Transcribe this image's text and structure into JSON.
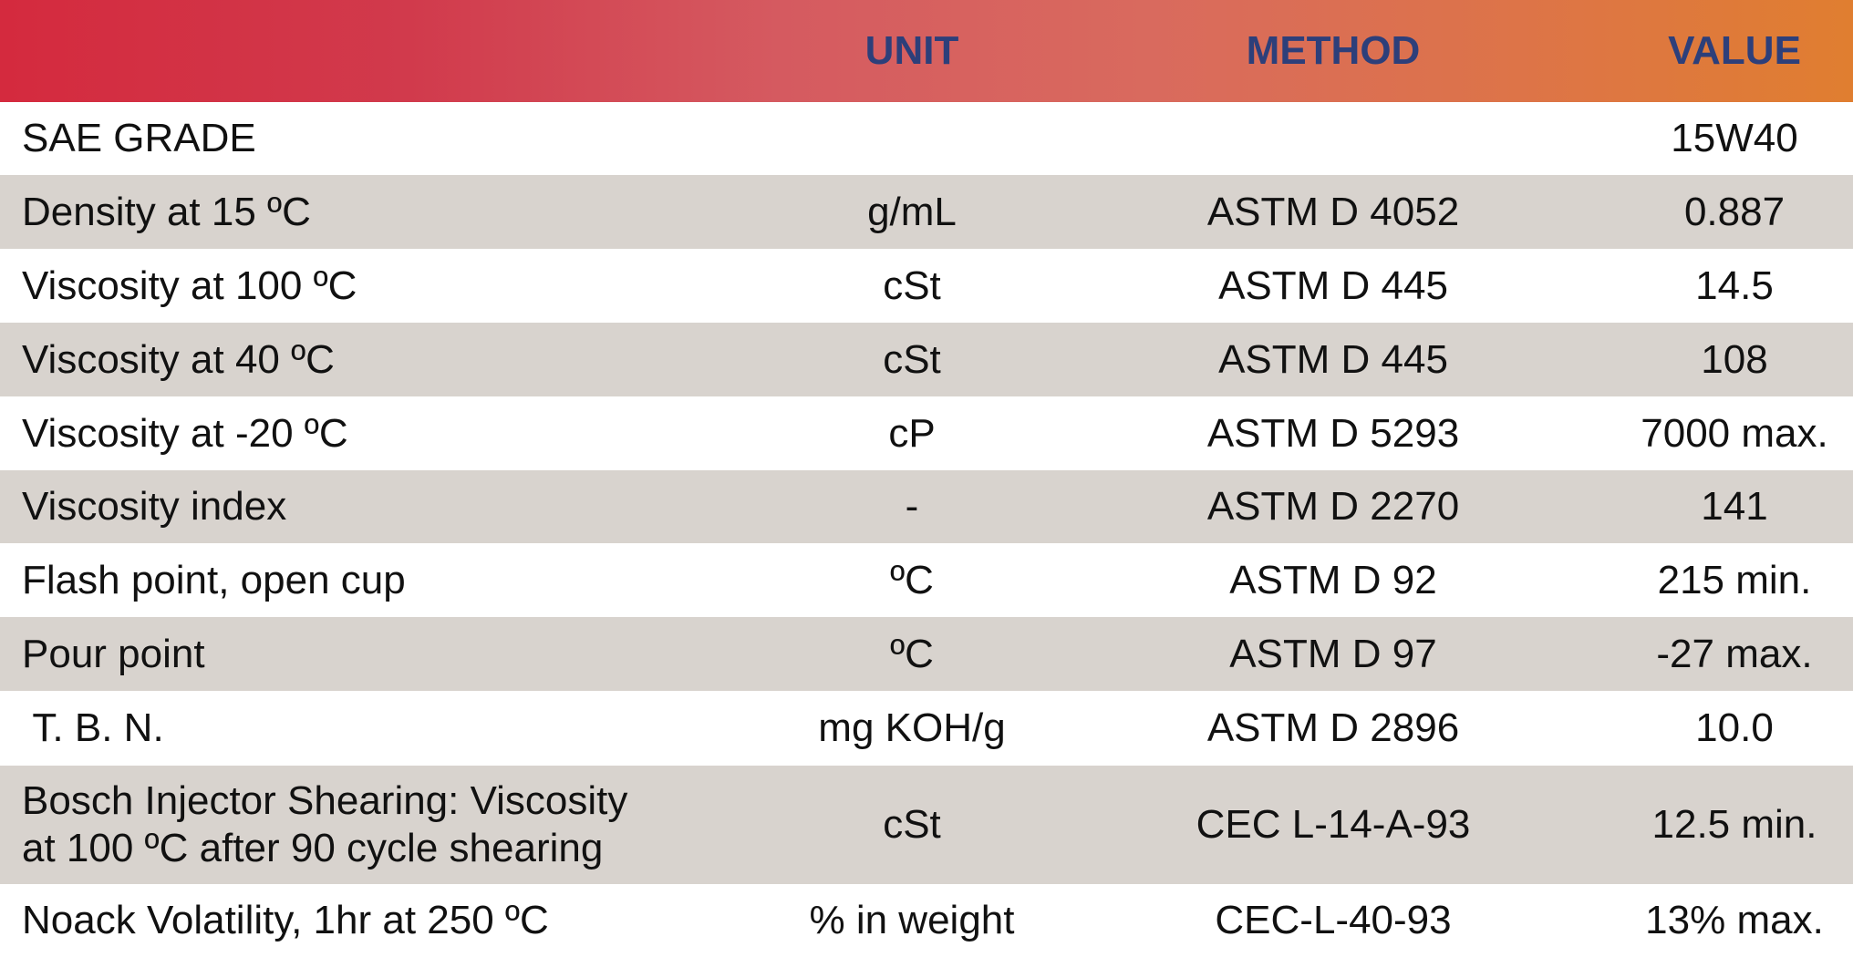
{
  "header": {
    "property": "",
    "unit": "UNIT",
    "method": "METHOD",
    "value": "VALUE"
  },
  "rows": [
    {
      "property": "SAE GRADE",
      "unit": "",
      "method": "",
      "value": "15W40"
    },
    {
      "property": "Density at 15 ºC",
      "unit": "g/mL",
      "method": "ASTM D 4052",
      "value": "0.887"
    },
    {
      "property": "Viscosity at 100 ºC",
      "unit": "cSt",
      "method": "ASTM D 445",
      "value": "14.5"
    },
    {
      "property": "Viscosity at 40 ºC",
      "unit": "cSt",
      "method": "ASTM D 445",
      "value": "108"
    },
    {
      "property": "Viscosity at -20 ºC",
      "unit": "cP",
      "method": "ASTM D 5293",
      "value": "7000 max."
    },
    {
      "property": "Viscosity index",
      "unit": "-",
      "method": "ASTM D 2270",
      "value": "141"
    },
    {
      "property": "Flash point, open cup",
      "unit": "ºC",
      "method": "ASTM D 92",
      "value": "215 min."
    },
    {
      "property": "Pour point",
      "unit": "ºC",
      "method": "ASTM D 97",
      "value": "-27 max."
    },
    {
      "property": " T. B. N.",
      "unit": "mg KOH/g",
      "method": "ASTM D 2896",
      "value": "10.0"
    },
    {
      "property": "Bosch Injector Shearing: Viscosity at 100 ºC after 90 cycle shearing",
      "unit": "cSt",
      "method": "CEC L-14-A-93",
      "value": "12.5 min."
    },
    {
      "property": "Noack Volatility, 1hr at 250 ºC",
      "unit": "% in weight",
      "method": "CEC-L-40-93",
      "value": "13% max."
    }
  ],
  "colors": {
    "header_gradient_start": "#d42a3e",
    "header_gradient_end": "#e07e30",
    "header_text": "#2d3f7a",
    "row_shade": "#d8d3ce",
    "row_white": "#ffffff"
  }
}
